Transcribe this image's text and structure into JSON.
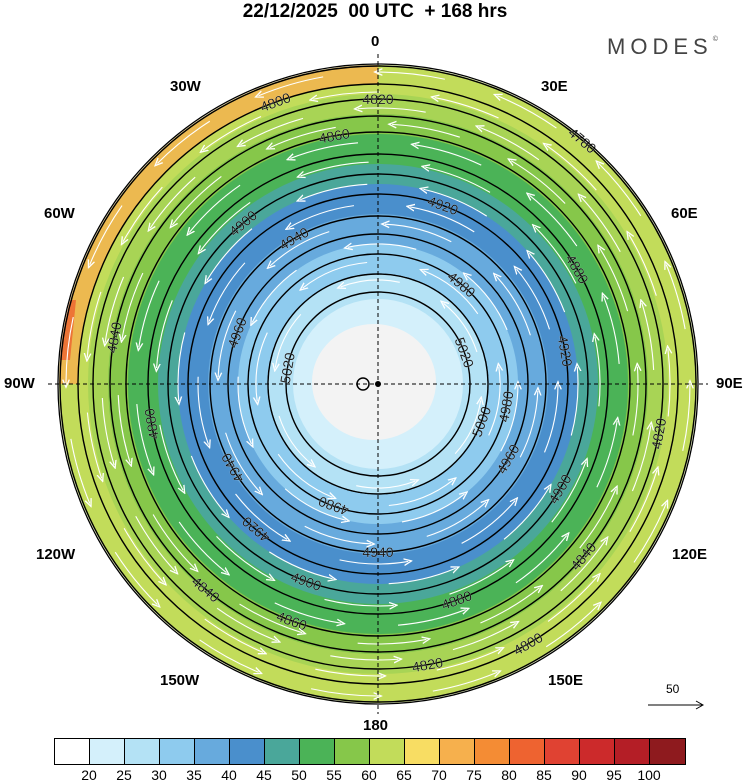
{
  "title": "22/12/2025  00 UTC  + 168 hrs",
  "logo": {
    "text": "MODES",
    "mark": "©"
  },
  "longitude_labels": {
    "lon_0": "0",
    "lon_30e": "30E",
    "lon_60e": "60E",
    "lon_90e": "90E",
    "lon_120e": "120E",
    "lon_150e": "150E",
    "lon_180": "180",
    "lon_150w": "150W",
    "lon_120w": "120W",
    "lon_90w": "90W",
    "lon_60w": "60W",
    "lon_30w": "30W"
  },
  "vector_legend": {
    "value": "50"
  },
  "colorbar": {
    "colors": [
      "#ffffff",
      "#d4f0fb",
      "#b4e2f5",
      "#8ecbee",
      "#67aadd",
      "#4a8fcc",
      "#4aa79a",
      "#4bb357",
      "#86c74a",
      "#c2dc5a",
      "#f8dd63",
      "#f6b04d",
      "#f48c34",
      "#ee6330",
      "#e04232",
      "#cc2a2b",
      "#b41e26",
      "#8e1a1e"
    ],
    "ticks": [
      "20",
      "25",
      "30",
      "35",
      "40",
      "45",
      "50",
      "55",
      "60",
      "65",
      "70",
      "75",
      "80",
      "85",
      "90",
      "95",
      "100"
    ]
  },
  "contours": [
    {
      "label": "4780",
      "color": "#000"
    },
    {
      "label": "4800",
      "color": "#000"
    },
    {
      "label": "4820",
      "color": "#000"
    },
    {
      "label": "4840",
      "color": "#000"
    },
    {
      "label": "4860",
      "color": "#000"
    },
    {
      "label": "4880",
      "color": "#000"
    },
    {
      "label": "4900",
      "color": "#000"
    },
    {
      "label": "4920",
      "color": "#000"
    },
    {
      "label": "4940",
      "color": "#000"
    },
    {
      "label": "4960",
      "color": "#000"
    },
    {
      "label": "4980",
      "color": "#000"
    },
    {
      "label": "5000",
      "color": "#000"
    },
    {
      "label": "5020",
      "color": "#000"
    }
  ]
}
